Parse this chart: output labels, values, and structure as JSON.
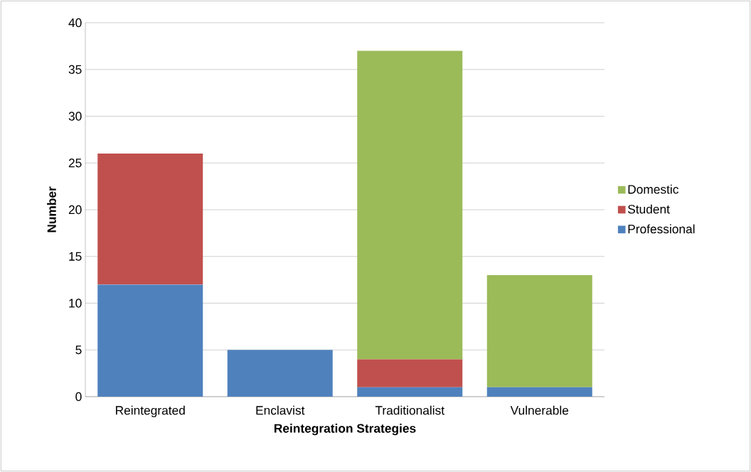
{
  "chart_data": {
    "type": "bar",
    "stacked": true,
    "xlabel": "Reintegration Strategies",
    "ylabel": "Number",
    "categories": [
      "Reintegrated",
      "Enclavist",
      "Traditionalist",
      "Vulnerable"
    ],
    "series": [
      {
        "name": "Professional",
        "color": "#4f81bd",
        "values": [
          12,
          5,
          1,
          1
        ]
      },
      {
        "name": "Student",
        "color": "#c0504d",
        "values": [
          14,
          0,
          3,
          0
        ]
      },
      {
        "name": "Domestic",
        "color": "#9bbb59",
        "values": [
          0,
          0,
          33,
          12
        ]
      }
    ],
    "ylim": [
      0,
      40
    ],
    "yticks": [
      0,
      5,
      10,
      15,
      20,
      25,
      30,
      35,
      40
    ],
    "grid": "y",
    "legend": "right"
  }
}
